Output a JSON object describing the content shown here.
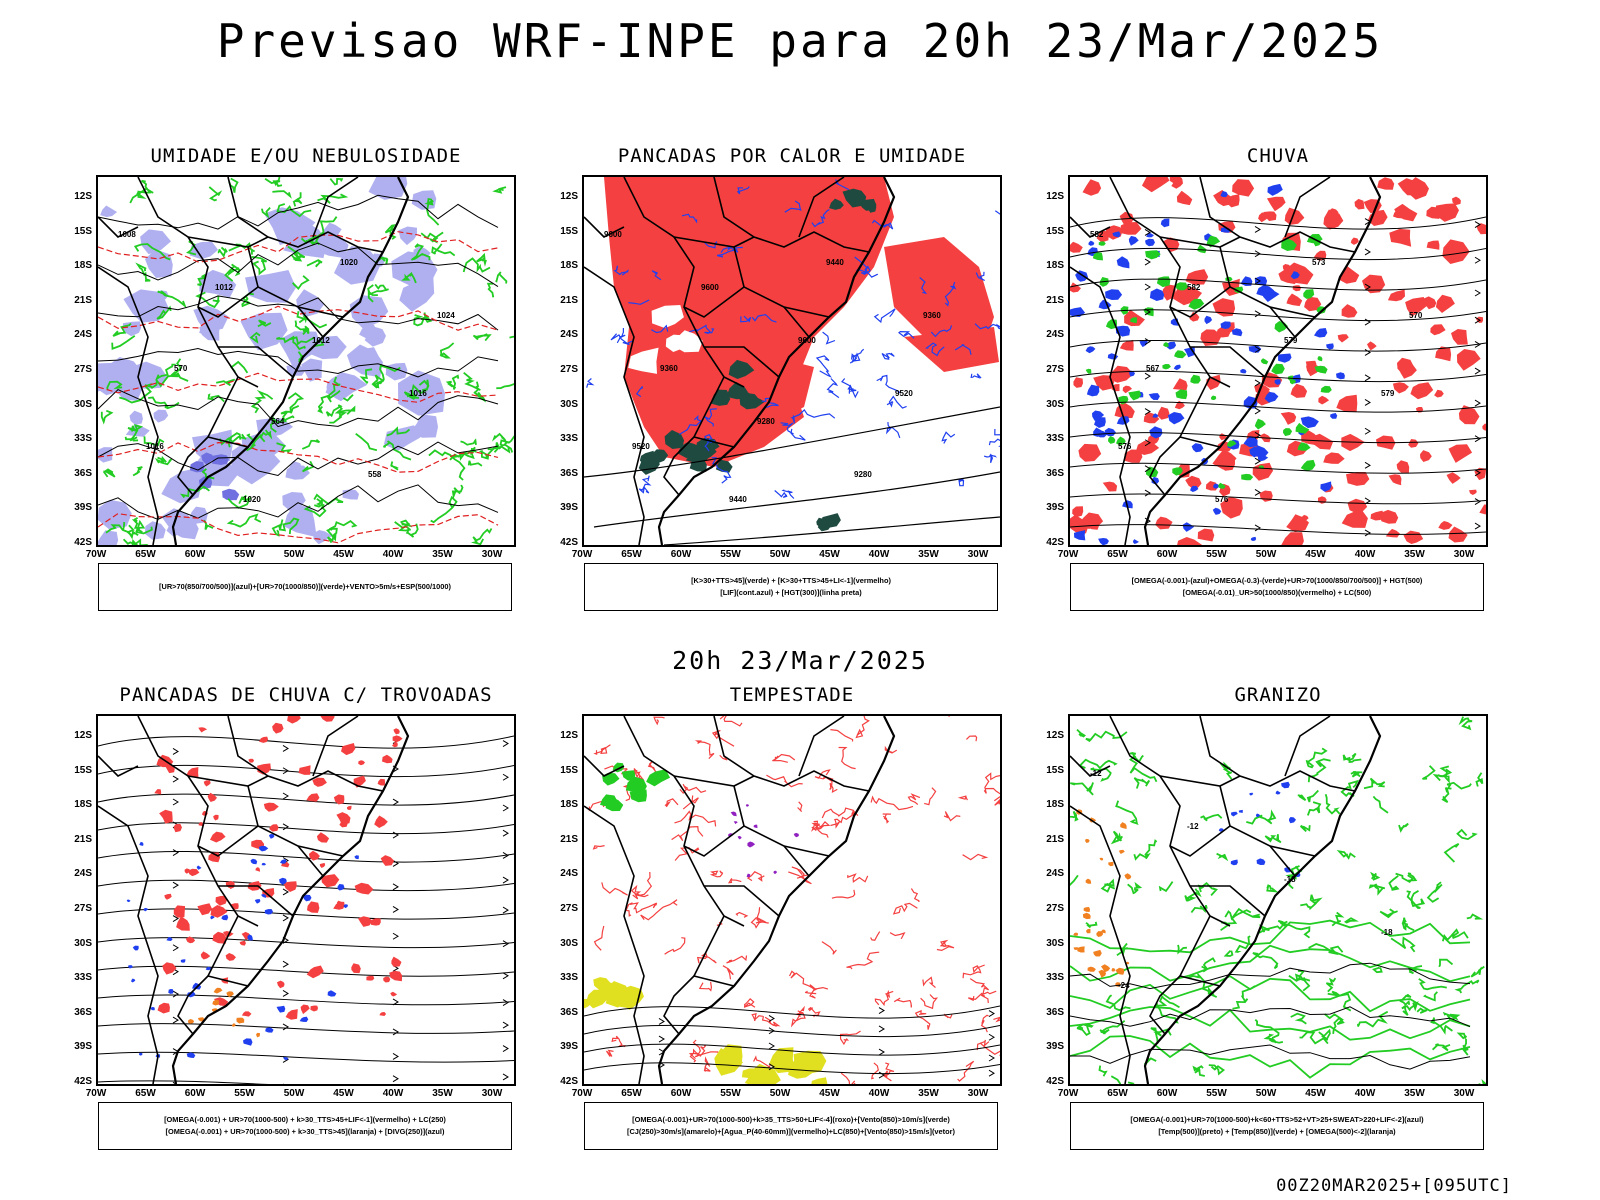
{
  "title": "Previsao WRF-INPE  para 20h 23/Mar/2025",
  "mid_date": "20h 23/Mar/2025",
  "footer_run": "00Z20MAR2025+[095UTC]",
  "axes": {
    "y_ticks": [
      "12S",
      "15S",
      "18S",
      "21S",
      "24S",
      "27S",
      "30S",
      "33S",
      "36S",
      "39S",
      "42S"
    ],
    "x_ticks": [
      "70W",
      "65W",
      "60W",
      "55W",
      "50W",
      "45W",
      "40W",
      "35W",
      "30W"
    ]
  },
  "colors": {
    "red": "#f44040",
    "blue": "#2040f0",
    "green": "#22cc22",
    "lavender": "#b0b0f0",
    "darkgreen": "#1e4a40",
    "yellow": "#e0e020",
    "orange": "#f08020",
    "purple": "#9020c0"
  },
  "panels": [
    {
      "title": "UMIDADE E/OU NEBULOSIDADE",
      "legend": [
        "[UR>70(850/700/500)](azul)+[UR>70(1000/850)](verde)+VENTO>5m/s+ESP(500/1000)"
      ],
      "labels": [
        "1008",
        "1012",
        "1012",
        "1016",
        "1016",
        "1020",
        "1020",
        "1024",
        "570",
        "564",
        "558"
      ]
    },
    {
      "title": "PANCADAS POR CALOR E UMIDADE",
      "legend": [
        "[K>30+TTS>45](verde) + [K>30+TTS>45+LI<-1](vermelho)",
        "[LIF](cont.azul) + [HGT(300)](linha preta)"
      ],
      "labels": [
        "9600",
        "9600",
        "9600",
        "9520",
        "9520",
        "9440",
        "9440",
        "9360",
        "9360",
        "9280",
        "9280"
      ]
    },
    {
      "title": "CHUVA",
      "legend": [
        "[OMEGA(-0.001)-(azul)+OMEGA(-0.3)-(verde)+UR>70(1000/850/700/500)] + HGT(500)",
        "[OMEGA(-0.01)_UR>50(1000/850)(vermelho) + LC(500)"
      ],
      "labels": [
        "582",
        "582",
        "579",
        "579",
        "576",
        "576",
        "573",
        "570",
        "567"
      ]
    },
    {
      "title": "PANCADAS DE CHUVA C/ TROVOADAS",
      "legend": [
        "[OMEGA(-0.001) + UR>70(1000-500) + k>30_TTS>45+LIF<-1](vermelho) + LC(250)",
        "[OMEGA(-0.001) + UR>70(1000-500) + k>30_TTS>45](laranja) + [DIVG(250)](azul)"
      ],
      "labels": []
    },
    {
      "title": "TEMPESTADE",
      "legend": [
        "[OMEGA(-0.001)+UR>70(1000-500)+k>35_TTS>50+LIF<-4](roxo)+[Vento(850)>10m/s](verde)",
        "[CJ(250)>30m/s](amarelo)+[Agua_P(40-60mm)](vermelho)+LC(850)+[Vento(850)>15m/s](vetor)"
      ],
      "labels": []
    },
    {
      "title": "GRANIZO",
      "legend": [
        "[OMEGA(-0.001)+UR>70(1000-500)+k<60+TTS>52+VT>25+SWEAT>220+LIF<-2](azul)",
        "[Temp(500)](preto) + [Temp(850)](verde) + [OMEGA(500)<-2](laranja)"
      ],
      "labels": [
        "-12",
        "-12",
        "-18",
        "-18",
        "-24"
      ]
    }
  ]
}
